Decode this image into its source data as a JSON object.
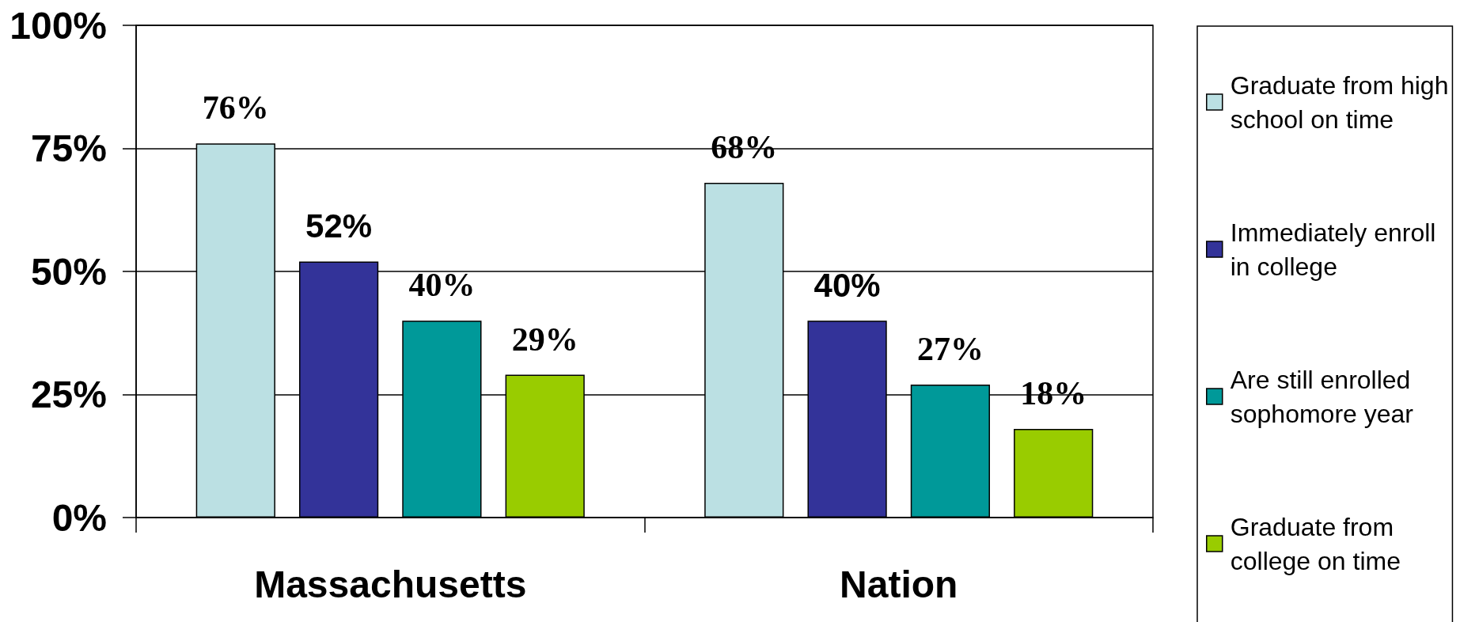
{
  "chart_data": {
    "type": "bar",
    "categories": [
      "Massachusetts",
      "Nation"
    ],
    "series": [
      {
        "name": "Graduate from high school on time",
        "color": "#bbe0e3",
        "values": [
          76,
          68
        ],
        "value_labels": [
          "76%",
          "68%"
        ]
      },
      {
        "name": "Immediately enroll in college",
        "color": "#333399",
        "values": [
          52,
          40
        ],
        "value_labels": [
          "52%",
          "40%"
        ]
      },
      {
        "name": "Are still enrolled sophomore year",
        "color": "#009999",
        "values": [
          40,
          27
        ],
        "value_labels": [
          "40%",
          "27%"
        ]
      },
      {
        "name": "Graduate from college on time",
        "color": "#99cc00",
        "values": [
          29,
          18
        ],
        "value_labels": [
          "29%",
          "18%"
        ]
      }
    ],
    "ylim": [
      0,
      100
    ],
    "yticks": [
      {
        "value": 0,
        "label": "0%"
      },
      {
        "value": 25,
        "label": "25%"
      },
      {
        "value": 50,
        "label": "50%"
      },
      {
        "value": 75,
        "label": "75%"
      },
      {
        "value": 100,
        "label": "100%"
      }
    ],
    "grid": "y",
    "legend": "right"
  }
}
